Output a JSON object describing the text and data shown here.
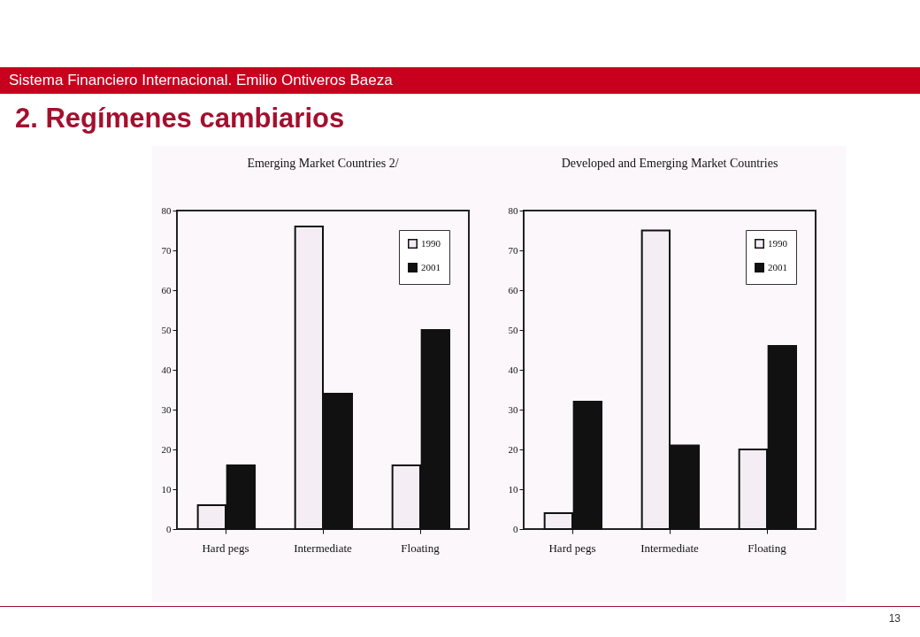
{
  "chart_data": [
    {
      "type": "other",
      "title": "2. Regímenes cambiarios",
      "subtitle": "Sistema Financiero Internacional. Emilio Ontiveros Baeza",
      "annotations": [
        "13"
      ]
    },
    {
      "type": "bar",
      "title": "Emerging Market Countries 2/",
      "categories": [
        "Hard pegs",
        "Intermediate",
        "Floating"
      ],
      "series": [
        {
          "name": "1990",
          "color": "#f4eef4",
          "values": [
            6,
            76,
            16
          ]
        },
        {
          "name": "2001",
          "color": "#111111",
          "values": [
            16,
            34,
            50
          ]
        }
      ],
      "ylim": [
        0,
        80
      ],
      "yticks": [
        0,
        10,
        20,
        30,
        40,
        50,
        60,
        70,
        80
      ],
      "legend": "top right"
    },
    {
      "type": "bar",
      "title": "Developed and Emerging Market Countries",
      "categories": [
        "Hard pegs",
        "Intermediate",
        "Floating"
      ],
      "series": [
        {
          "name": "1990",
          "color": "#f4eef4",
          "values": [
            4,
            75,
            20
          ]
        },
        {
          "name": "2001",
          "color": "#111111",
          "values": [
            32,
            21,
            46
          ]
        }
      ],
      "ylim": [
        0,
        80
      ],
      "yticks": [
        0,
        10,
        20,
        30,
        40,
        50,
        60,
        70,
        80
      ],
      "legend": "top right"
    }
  ]
}
